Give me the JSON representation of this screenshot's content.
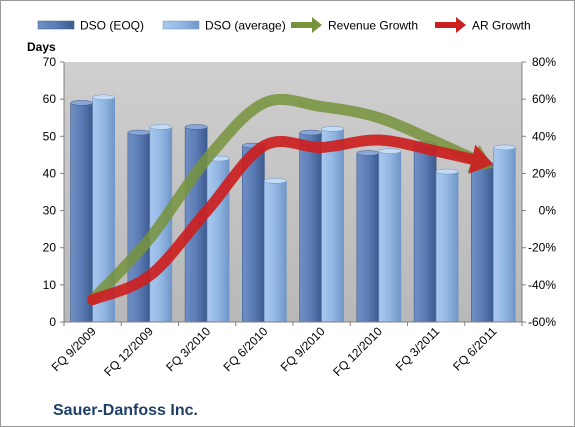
{
  "chart_data": {
    "type": "bar",
    "categories": [
      "FQ 9/2009",
      "FQ 12/2009",
      "FQ 3/2010",
      "FQ 6/2010",
      "FQ 9/2010",
      "FQ 12/2010",
      "FQ 3/2011",
      "FQ 6/2011"
    ],
    "series": [
      {
        "name": "DSO (EOQ)",
        "kind": "bar",
        "axis": "left",
        "color": "#4f6fa6",
        "values": [
          59,
          51,
          52.5,
          47.5,
          51,
          45.5,
          48,
          42.5
        ]
      },
      {
        "name": "DSO (average)",
        "kind": "bar",
        "axis": "left",
        "color": "#8db3e2",
        "values": [
          60.5,
          52.5,
          44,
          38,
          52,
          46,
          40.5,
          47
        ]
      },
      {
        "name": "Revenue Growth",
        "kind": "line",
        "axis": "right",
        "color": "#77933c",
        "values": [
          -48,
          -15,
          28,
          58,
          56,
          50,
          37,
          23
        ]
      },
      {
        "name": "AR Growth",
        "kind": "line",
        "axis": "right",
        "color": "#cc2020",
        "values": [
          -48,
          -35,
          0,
          35,
          34,
          38,
          32,
          25
        ]
      }
    ],
    "ylabel": "Days",
    "ylim": [
      0,
      70
    ],
    "yticks": [
      "0",
      "10",
      "20",
      "30",
      "40",
      "50",
      "60",
      "70"
    ],
    "y2lim": [
      -60,
      80
    ],
    "y2ticks": [
      "-60%",
      "-40%",
      "-20%",
      "0%",
      "20%",
      "40%",
      "60%",
      "80%"
    ],
    "legend_position": "top",
    "grid": false,
    "plot_background": "#c0c0c0",
    "footer_title": "Sauer-Danfoss Inc."
  }
}
